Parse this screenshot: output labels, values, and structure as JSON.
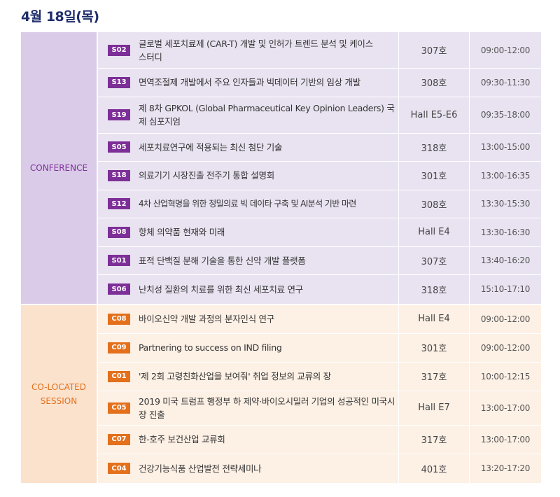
{
  "page": {
    "title": "4월 18일(목)"
  },
  "sections": [
    {
      "label": "CONFERENCE",
      "accent": "#7d2f98",
      "rows": [
        {
          "code": "S02",
          "title": "글로벌 세포치료제 (CAR-T) 개발 및 인허가 트렌드 분석 및 케이스 스터디",
          "room": "307호",
          "time": "09:00-12:00"
        },
        {
          "code": "S13",
          "title": "면역조절제 개발에서 주요 인자들과 빅데이터 기반의 임상 개발",
          "room": "308호",
          "time": "09:30-11:30"
        },
        {
          "code": "S19",
          "title": "제 8차 GPKOL (Global Pharmaceutical Key Opinion Leaders) 국제 심포지엄",
          "room": "Hall E5-E6",
          "time": "09:35-18:00"
        },
        {
          "code": "S05",
          "title": "세포치료연구에 적용되는 최신 첨단 기술",
          "room": "318호",
          "time": "13:00-15:00"
        },
        {
          "code": "S18",
          "title": "의료기기 시장진출 전주기 통합 설명회",
          "room": "301호",
          "time": "13:00-16:35"
        },
        {
          "code": "S12",
          "title": "4차 산업혁명을 위한 정밀의료 빅 데이타 구축 및 AI분석 기반 마련",
          "room": "308호",
          "time": "13:30-15:30"
        },
        {
          "code": "S08",
          "title": "항체 의약품 현재와 미래",
          "room": "Hall E4",
          "time": "13:30-16:30"
        },
        {
          "code": "S01",
          "title": "표적 단백질 분해 기술을 통한 신약 개발 플랫폼",
          "room": "307호",
          "time": "13:40-16:20"
        },
        {
          "code": "S06",
          "title": "난치성 질환의 치료를 위한 최신 세포치료 연구",
          "room": "318호",
          "time": "15:10-17:10"
        }
      ]
    },
    {
      "label": "CO-LOCATED SESSION",
      "accent": "#e4701c",
      "rows": [
        {
          "code": "C08",
          "title": "바이오신약 개발 과정의 분자인식 연구",
          "room": "Hall E4",
          "time": "09:00-12:00"
        },
        {
          "code": "C09",
          "title": "Partnering to success on IND filing",
          "room": "301호",
          "time": "09:00-12:00"
        },
        {
          "code": "C01",
          "title": "'제 2회 고령친화산업을 보여줘' 취업 정보의 교류의 장",
          "room": "317호",
          "time": "10:00-12:15"
        },
        {
          "code": "C05",
          "title": "2019 미국 트럼프 행정부 하 제약·바이오시밀러 기업의 성공적인 미국시장 진출",
          "room": "Hall E7",
          "time": "13:00-17:00"
        },
        {
          "code": "C07",
          "title": "한-호주 보건산업 교류회",
          "room": "317호",
          "time": "13:00-17:00"
        },
        {
          "code": "C04",
          "title": "건강기능식품 산업발전 전략세미나",
          "room": "401호",
          "time": "13:20-17:20"
        }
      ]
    }
  ]
}
